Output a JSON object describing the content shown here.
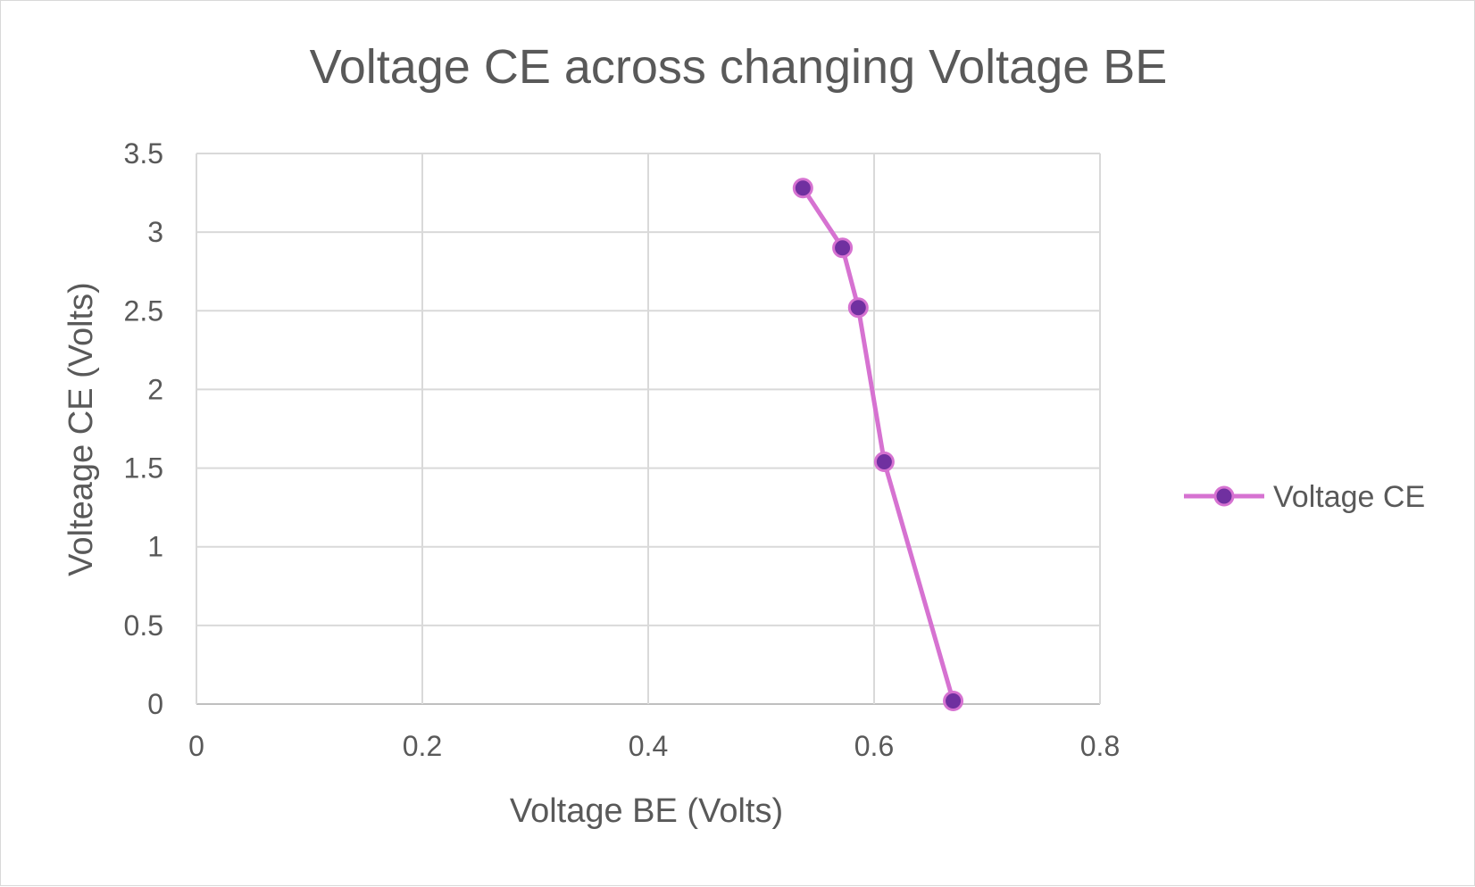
{
  "chart_data": {
    "type": "scatter",
    "title": "Voltage CE across changing Voltage BE",
    "xlabel": "Voltage BE (Volts)",
    "ylabel": "Volteage CE (Volts)",
    "xlim": [
      0,
      0.8
    ],
    "ylim": [
      0,
      3.5
    ],
    "x_ticks": [
      "0",
      "0.2",
      "0.4",
      "0.6",
      "0.8"
    ],
    "y_ticks": [
      "0",
      "0.5",
      "1",
      "1.5",
      "2",
      "2.5",
      "3",
      "3.5"
    ],
    "grid": true,
    "legend_position": "right",
    "series": [
      {
        "name": "Voltage CE",
        "line_color": "#d672d1",
        "marker_color": "#7030a0",
        "points": [
          {
            "x": 0.537,
            "y": 3.28
          },
          {
            "x": 0.572,
            "y": 2.9
          },
          {
            "x": 0.586,
            "y": 2.52
          },
          {
            "x": 0.609,
            "y": 1.54
          },
          {
            "x": 0.67,
            "y": 0.02
          }
        ]
      }
    ]
  }
}
